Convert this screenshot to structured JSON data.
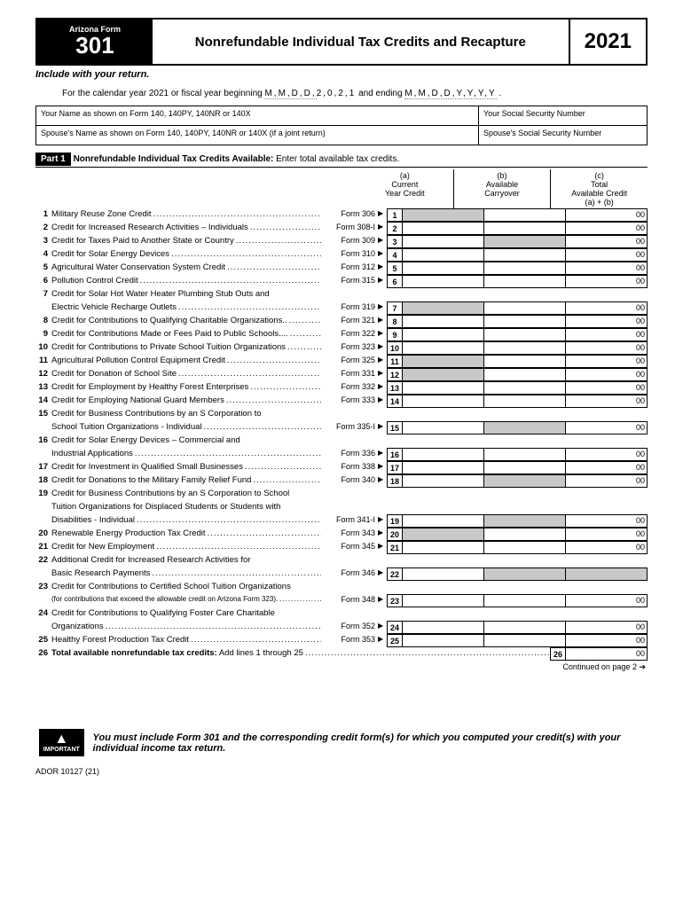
{
  "header": {
    "state_label": "Arizona Form",
    "form_number": "301",
    "title": "Nonrefundable Individual Tax Credits and Recapture",
    "year": "2021"
  },
  "include_line": "Include with your return.",
  "fiscal_line_prefix": "For the calendar year 2021 or fiscal year beginning ",
  "fiscal_year_fixed": "2,0,2,1",
  "fiscal_line_mid": " and ending ",
  "id_fields": {
    "name_label": "Your Name as shown on Form 140, 140PY, 140NR or 140X",
    "ssn_label": "Your Social Security Number",
    "spouse_name_label": "Spouse's Name as shown on Form 140, 140PY, 140NR or 140X (if a joint return)",
    "spouse_ssn_label": "Spouse's Social Security Number"
  },
  "part1": {
    "part_label": "Part 1",
    "title_bold": "Nonrefundable Individual Tax Credits Available:",
    "title_rest": " Enter total available tax credits.",
    "col_a": "(a)\nCurrent\nYear Credit",
    "col_b": "(b)\nAvailable\nCarryover",
    "col_c": "(c)\nTotal\nAvailable Credit\n(a) + (b)"
  },
  "lines": [
    {
      "n": "1",
      "desc": "Military Reuse Zone Credit",
      "form": "Form 306",
      "a_shaded": true,
      "has_c": true
    },
    {
      "n": "2",
      "desc": "Credit for Increased Research Activities – Individuals",
      "form": "Form 308-I",
      "has_c": true
    },
    {
      "n": "3",
      "desc": "Credit for Taxes Paid to Another State or Country",
      "form": "Form 309",
      "b_shaded": true,
      "has_c": true
    },
    {
      "n": "4",
      "desc": "Credit for Solar Energy Devices",
      "form": "Form 310",
      "has_c": true
    },
    {
      "n": "5",
      "desc": "Agricultural Water Conservation System Credit",
      "form": "Form 312",
      "has_c": true
    },
    {
      "n": "6",
      "desc": "Pollution Control Credit",
      "form": "Form 315",
      "has_c": true
    },
    {
      "n": "7",
      "desc": "Credit for Solar Hot Water Heater Plumbing Stub Outs and",
      "wrap": true
    },
    {
      "n": "",
      "desc": "Electric Vehicle Recharge Outlets",
      "form": "Form 319",
      "box": "7",
      "a_shaded": true,
      "has_c": true
    },
    {
      "n": "8",
      "desc": "Credit for Contributions to Qualifying Charitable Organizations..",
      "form": "Form 321",
      "has_c": true
    },
    {
      "n": "9",
      "desc": "Credit for Contributions Made or Fees Paid to Public Schools....",
      "form": "Form 322",
      "has_c": true
    },
    {
      "n": "10",
      "desc": "Credit for Contributions to Private School Tuition Organizations",
      "form": "Form 323",
      "has_c": true
    },
    {
      "n": "11",
      "desc": "Agricultural Pollution Control Equipment Credit",
      "form": "Form 325",
      "a_shaded": true,
      "has_c": true
    },
    {
      "n": "12",
      "desc": "Credit for Donation of School Site",
      "form": "Form 331",
      "a_shaded": true,
      "has_c": true
    },
    {
      "n": "13",
      "desc": "Credit for Employment by Healthy Forest Enterprises",
      "form": "Form 332",
      "has_c": true
    },
    {
      "n": "14",
      "desc": "Credit for Employing National Guard Members",
      "form": "Form 333",
      "has_c": true
    },
    {
      "n": "15",
      "desc": "Credit for Business Contributions by an S Corporation to",
      "wrap": true
    },
    {
      "n": "",
      "desc": "School Tuition Organizations - Individual",
      "form": "Form 335-I",
      "box": "15",
      "b_shaded": true,
      "has_c": true
    },
    {
      "n": "16",
      "desc": "Credit for Solar Energy Devices – Commercial and",
      "wrap": true
    },
    {
      "n": "",
      "desc": "Industrial Applications",
      "form": "Form 336",
      "box": "16",
      "has_c": true
    },
    {
      "n": "17",
      "desc": "Credit for Investment in Qualified Small Businesses",
      "form": "Form 338",
      "has_c": true
    },
    {
      "n": "18",
      "desc": "Credit for Donations to the Military Family Relief Fund",
      "form": "Form 340",
      "b_shaded": true,
      "has_c": true
    },
    {
      "n": "19",
      "desc": "Credit for Business Contributions by an S Corporation to School",
      "wrap": true
    },
    {
      "n": "",
      "desc": "Tuition Organizations for Displaced Students or Students with",
      "wrap": true
    },
    {
      "n": "",
      "desc": "Disabilities - Individual",
      "form": "Form 341-I",
      "box": "19",
      "b_shaded": true,
      "has_c": true
    },
    {
      "n": "20",
      "desc": "Renewable Energy Production Tax Credit",
      "form": "Form 343",
      "a_shaded": true,
      "has_c": true
    },
    {
      "n": "21",
      "desc": "Credit for New Employment",
      "form": "Form 345",
      "has_c": true
    },
    {
      "n": "22",
      "desc": "Additional Credit for Increased Research Activities for",
      "wrap": true
    },
    {
      "n": "",
      "desc": "Basic Research Payments",
      "form": "Form 346",
      "box": "22",
      "b_shaded": true,
      "c_shaded": true
    },
    {
      "n": "23",
      "desc": "Credit for Contributions to Certified School Tuition Organizations",
      "wrap": true
    },
    {
      "n": "",
      "desc": "(for contributions that exceed the allowable credit on Arizona Form 323).",
      "form": "Form 348",
      "box": "23",
      "small": true,
      "has_c": true
    },
    {
      "n": "24",
      "desc": "Credit for Contributions to Qualifying Foster Care Charitable",
      "wrap": true
    },
    {
      "n": "",
      "desc": "Organizations",
      "form": "Form 352",
      "box": "24",
      "has_c": true
    },
    {
      "n": "25",
      "desc": "Healthy Forest Production Tax Credit",
      "form": "Form 353",
      "has_c": true
    }
  ],
  "line26": {
    "n": "26",
    "desc": "Total available nonrefundable tax credits: Add lines 1 through 25"
  },
  "continued": "Continued on page 2 ➔",
  "important": {
    "label": "IMPORTANT",
    "text": "You must include Form 301 and the corresponding credit form(s) for which you computed your credit(s) with your individual income tax return."
  },
  "footer": "ADOR 10127 (21)",
  "colors": {
    "shaded": "#c8c8c8",
    "black": "#000000",
    "white": "#ffffff"
  }
}
